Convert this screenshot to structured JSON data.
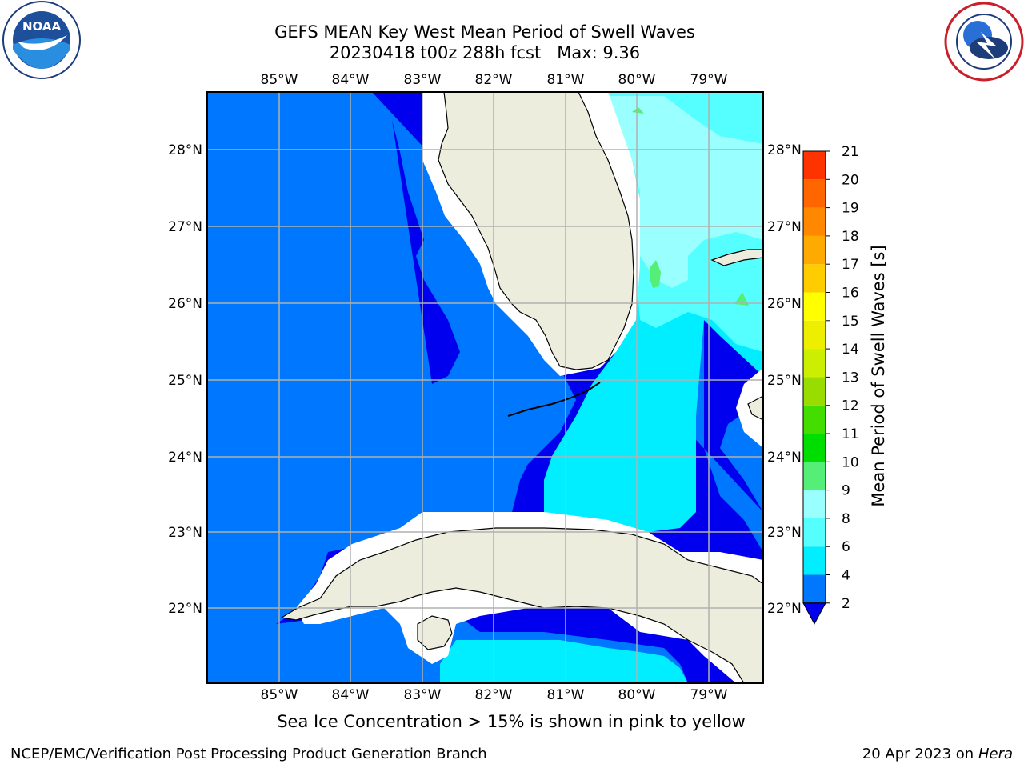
{
  "header": {
    "title_line1": "GEFS MEAN Key West Mean Period of Swell Waves",
    "title_line2": "20230418 t00z 288h fcst   Max: 9.36"
  },
  "logos": {
    "left": {
      "text": "NOAA",
      "ring_text": "NATIONAL OCEANIC AND ATMOSPHERIC ADMINISTRATION · U.S. DEPARTMENT OF COMMERCE"
    },
    "right": {
      "ring_text": "NATIONAL WEATHER SERVICE"
    }
  },
  "map": {
    "lon_labels": [
      "85°W",
      "84°W",
      "83°W",
      "82°W",
      "81°W",
      "80°W",
      "79°W"
    ],
    "lat_labels": [
      "28°N",
      "27°N",
      "26°N",
      "25°N",
      "24°N",
      "23°N",
      "22°N"
    ],
    "colors": {
      "land": "#EDEDDD",
      "nodata": "#FFFFFF",
      "grid": "#B0B0B0",
      "coast": "#000000"
    }
  },
  "colorbar": {
    "label": "Mean Period of Swell Waves [s]",
    "ticks": [
      "2",
      "4",
      "6",
      "8",
      "9",
      "10",
      "11",
      "12",
      "13",
      "14",
      "15",
      "16",
      "17",
      "18",
      "19",
      "20",
      "21"
    ],
    "colors": [
      "#0077FF",
      "#00EEFF",
      "#55FFFF",
      "#99FFFF",
      "#55EE77",
      "#00DD00",
      "#44DD00",
      "#99DD00",
      "#CCEE00",
      "#EEEE00",
      "#FFFF00",
      "#FFCC00",
      "#FFAA00",
      "#FF8800",
      "#FF6600",
      "#FF3300",
      "#FF0000"
    ],
    "extend_color": "#0000EE"
  },
  "footer": {
    "note": "Sea Ice Concentration > 15% is shown in pink to yellow",
    "left": "NCEP/EMC/Verification Post Processing Product Generation Branch",
    "right_prefix": "20 Apr 2023 on ",
    "right_host": "Hera"
  }
}
